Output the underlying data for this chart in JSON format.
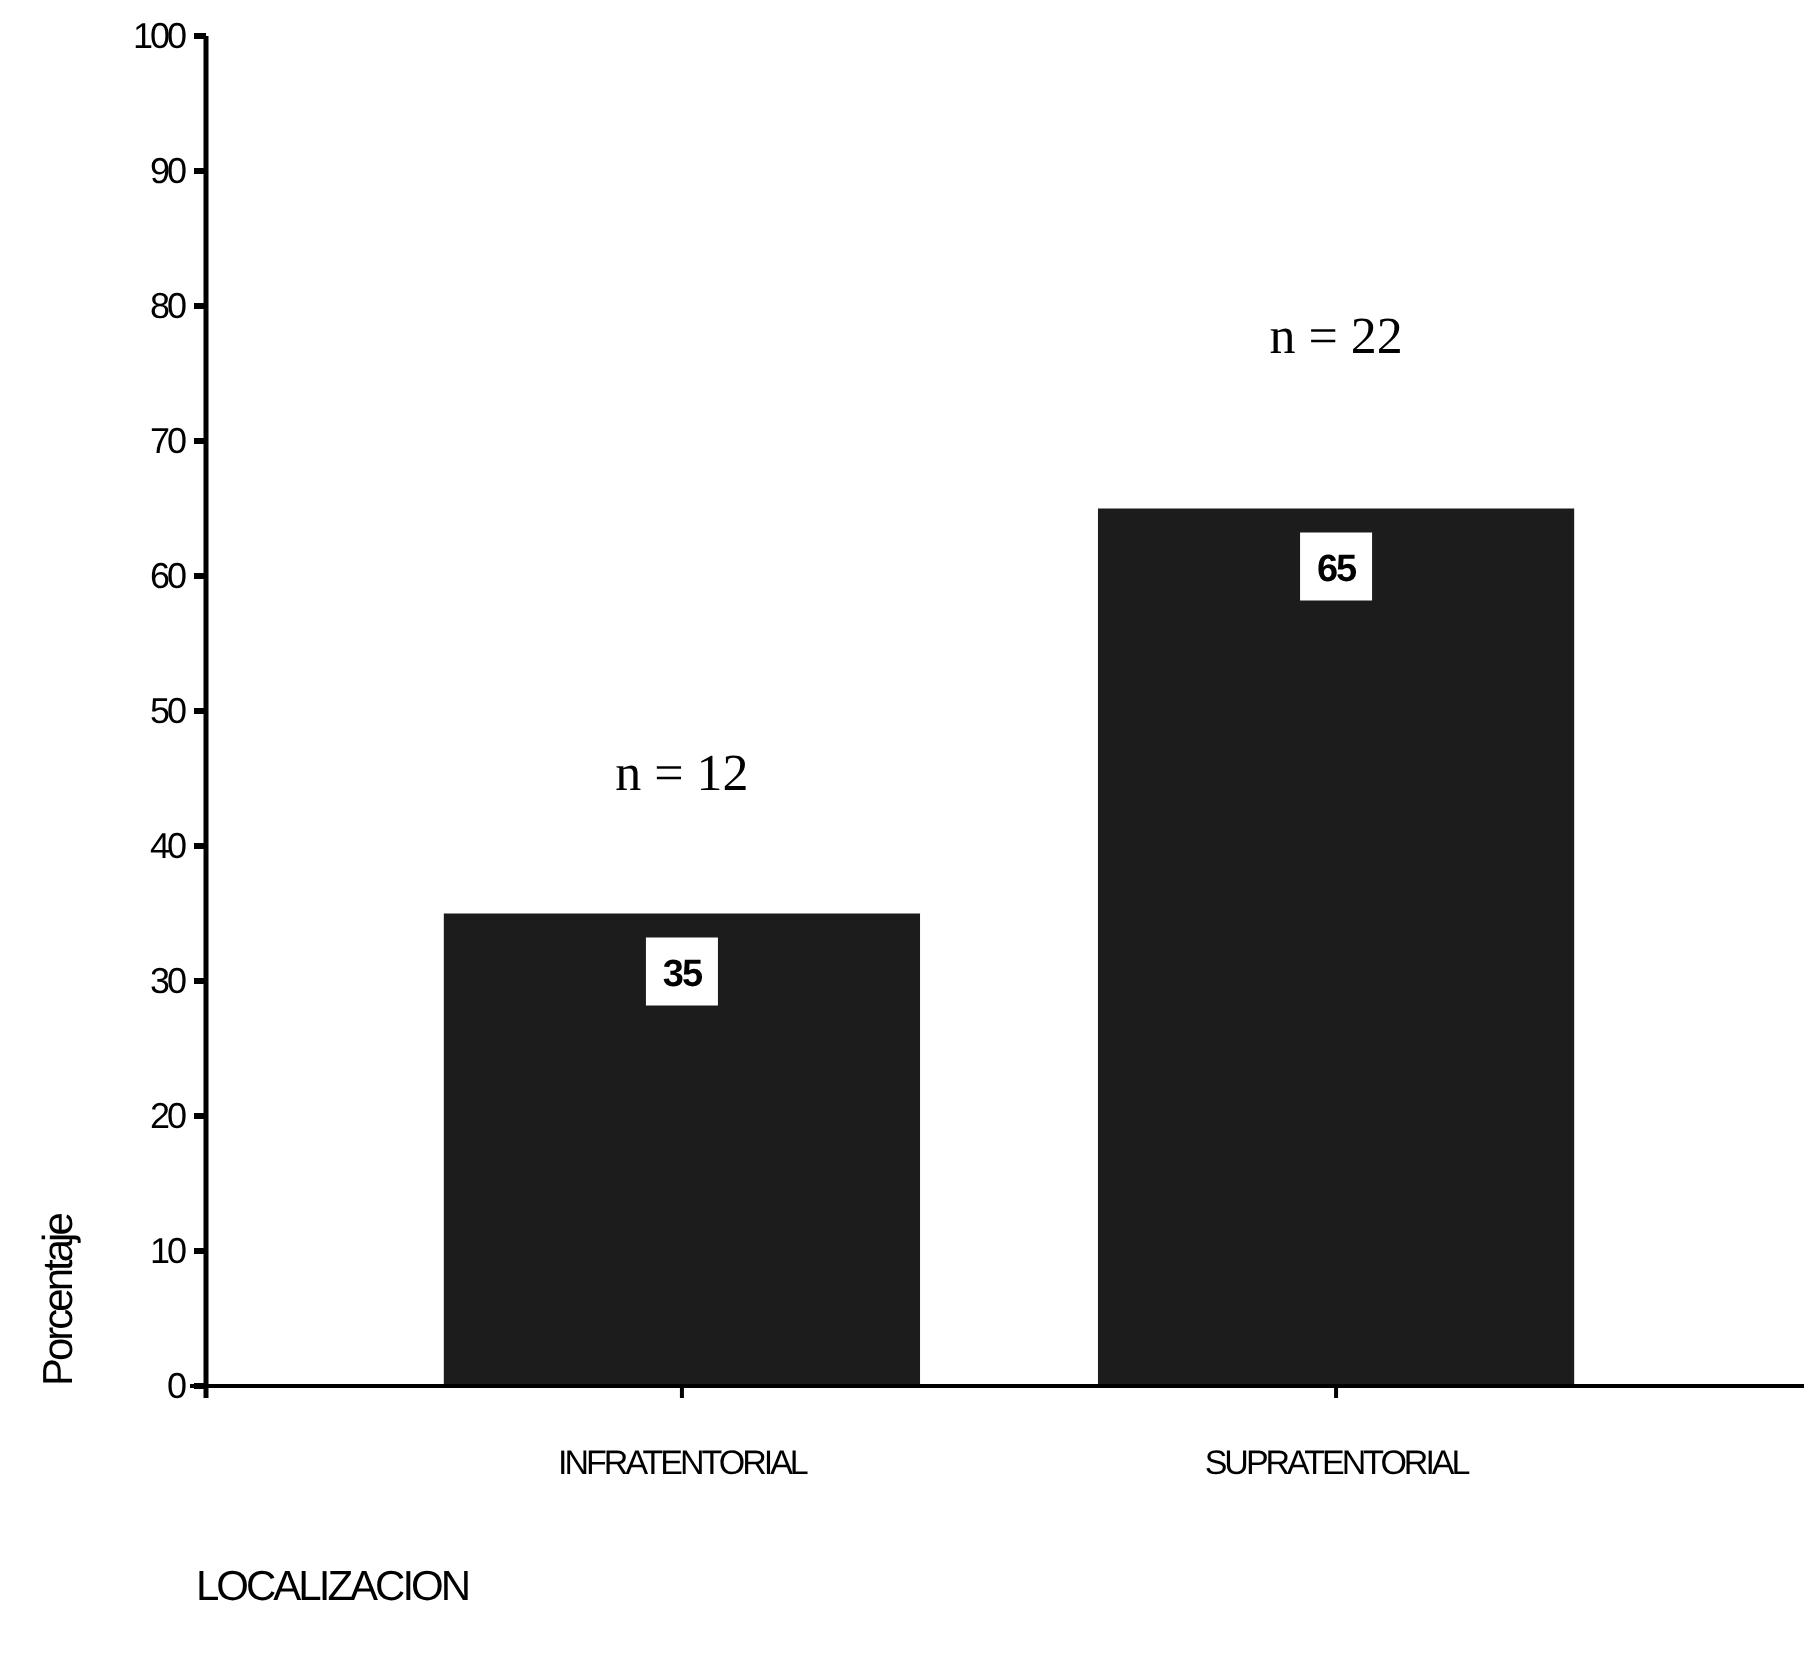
{
  "chart_data": {
    "type": "bar",
    "xlabel": "LOCALIZACION",
    "ylabel": "Porcentaje",
    "categories": [
      "INFRATENTORIAL",
      "SUPRATENTORIAL"
    ],
    "values": [
      35,
      65
    ],
    "color": "#1c1c1c",
    "ylim": [
      0,
      100
    ],
    "yticks": [
      0,
      10,
      20,
      30,
      40,
      50,
      60,
      70,
      80,
      90,
      100
    ],
    "grid": false,
    "data_labels": true,
    "annotations": [
      "n = 12",
      "n = 22"
    ]
  }
}
